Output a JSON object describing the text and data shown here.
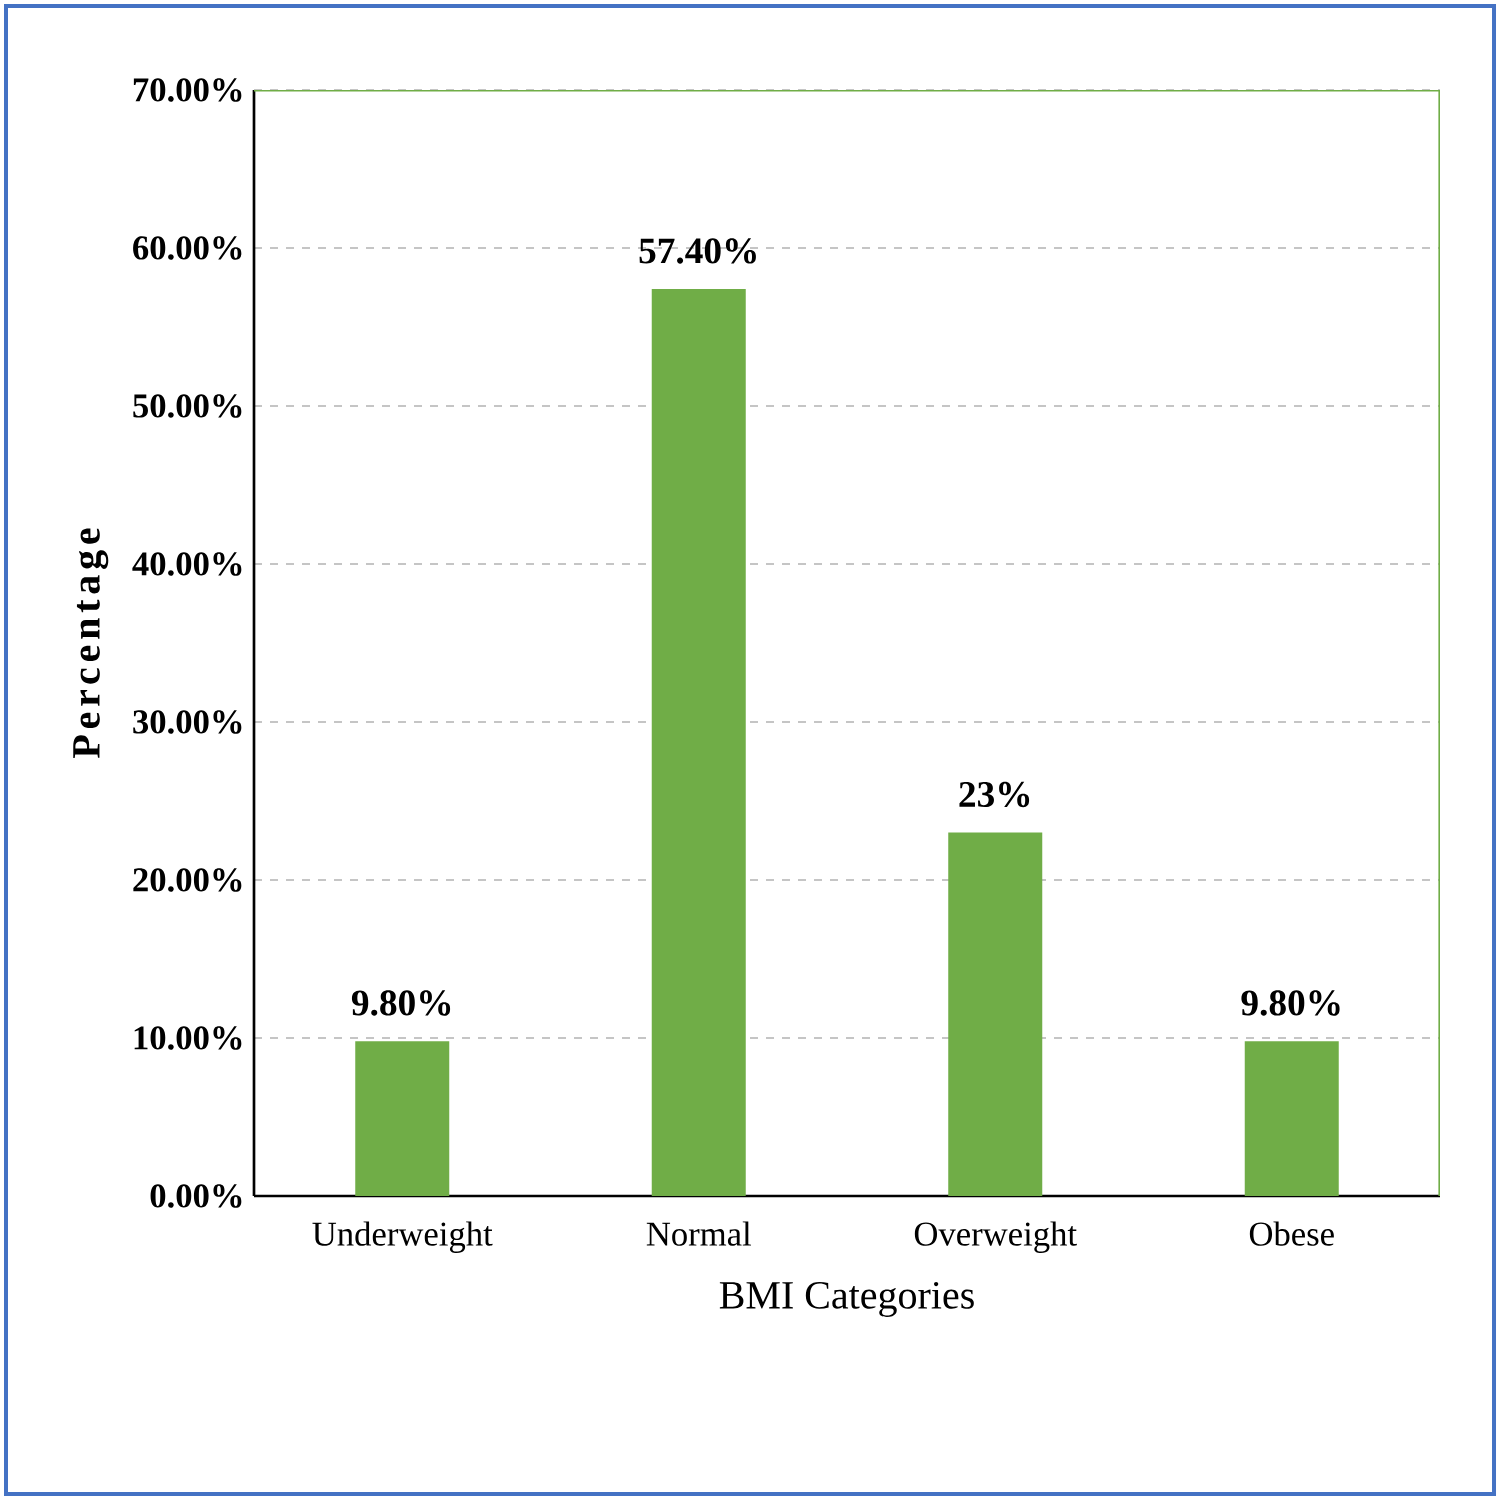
{
  "chart_data": {
    "type": "bar",
    "xlabel": "BMI Categories",
    "ylabel": "Percentage",
    "categories": [
      "Underweight",
      "Normal",
      "Overweight",
      "Obese"
    ],
    "values": [
      9.8,
      57.4,
      23,
      9.8
    ],
    "value_labels": [
      "9.80%",
      "57.40%",
      "23%",
      "9.80%"
    ],
    "color": "#70ad47",
    "ylim": [
      0,
      70
    ],
    "yticks": [
      {
        "value": 0,
        "label": "0.00%"
      },
      {
        "value": 10,
        "label": "10.00%"
      },
      {
        "value": 20,
        "label": "20.00%"
      },
      {
        "value": 30,
        "label": "30.00%"
      },
      {
        "value": 40,
        "label": "40.00%"
      },
      {
        "value": 50,
        "label": "50.00%"
      },
      {
        "value": 60,
        "label": "60.00%"
      },
      {
        "value": 70,
        "label": "70.00%"
      }
    ],
    "grid": "y"
  }
}
